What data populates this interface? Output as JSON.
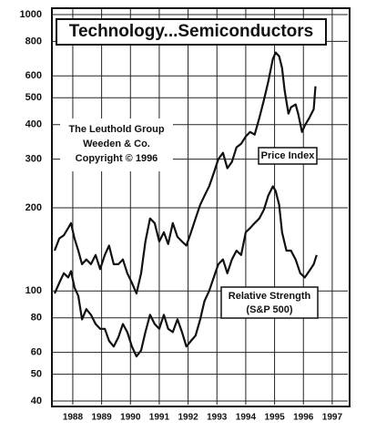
{
  "chart_data": {
    "type": "line",
    "title": "Technology...Semiconductors",
    "annotation": [
      "The Leuthold Group",
      "Weeden & Co.",
      "Copyright © 1996"
    ],
    "series": [
      {
        "name": "Price Index",
        "color": "#111111",
        "x": [
          1987.37,
          1987.53,
          1987.69,
          1987.84,
          1987.94,
          1988.06,
          1988.19,
          1988.32,
          1988.47,
          1988.63,
          1988.79,
          1988.95,
          1989.11,
          1989.26,
          1989.42,
          1989.58,
          1989.74,
          1989.89,
          1990.05,
          1990.21,
          1990.37,
          1990.52,
          1990.68,
          1990.84,
          1991.0,
          1991.16,
          1991.31,
          1991.47,
          1991.63,
          1991.79,
          1991.94,
          1992.1,
          1992.26,
          1992.42,
          1992.57,
          1992.73,
          1992.89,
          1993.05,
          1993.21,
          1993.36,
          1993.52,
          1993.68,
          1993.84,
          1994.0,
          1994.15,
          1994.31,
          1994.47,
          1994.63,
          1994.78,
          1994.94,
          1995.04,
          1995.16,
          1995.26,
          1995.35,
          1995.48,
          1995.57,
          1995.73,
          1995.82,
          1995.95,
          1996.05,
          1996.2,
          1996.36,
          1996.42
        ],
        "values": [
          140,
          155,
          159,
          169,
          176,
          155,
          140,
          125,
          130,
          125,
          135,
          120,
          135,
          146,
          125,
          125,
          130,
          116,
          107,
          98,
          116,
          151,
          183,
          176,
          151,
          163,
          148,
          176,
          157,
          151,
          146,
          163,
          183,
          205,
          221,
          239,
          267,
          300,
          316,
          278,
          293,
          331,
          341,
          362,
          376,
          368,
          422,
          491,
          571,
          691,
          729,
          707,
          641,
          530,
          438,
          462,
          473,
          438,
          376,
          397,
          422,
          455,
          550
        ]
      },
      {
        "name": "Relative Strength",
        "subname": "(S&P 500)",
        "color": "#111111",
        "x": [
          1987.37,
          1987.53,
          1987.69,
          1987.84,
          1987.94,
          1988.06,
          1988.19,
          1988.32,
          1988.47,
          1988.63,
          1988.79,
          1988.95,
          1989.11,
          1989.26,
          1989.42,
          1989.58,
          1989.74,
          1989.89,
          1990.05,
          1990.21,
          1990.37,
          1990.52,
          1990.68,
          1990.84,
          1991.0,
          1991.16,
          1991.31,
          1991.47,
          1991.63,
          1991.79,
          1991.94,
          1992.1,
          1992.26,
          1992.42,
          1992.57,
          1992.73,
          1992.89,
          1993.05,
          1993.21,
          1993.36,
          1993.52,
          1993.68,
          1993.84,
          1994.0,
          1994.15,
          1994.31,
          1994.47,
          1994.63,
          1994.78,
          1994.94,
          1995.04,
          1995.16,
          1995.26,
          1995.41,
          1995.57,
          1995.73,
          1995.89,
          1996.05,
          1996.2,
          1996.36,
          1996.46
        ],
        "values": [
          98,
          107,
          116,
          112,
          118,
          103,
          96,
          79,
          86,
          82,
          76,
          73,
          73,
          66,
          63,
          68,
          76,
          71,
          63,
          58,
          61,
          71,
          82,
          76,
          73,
          82,
          73,
          71,
          79,
          71,
          63,
          66,
          69,
          79,
          92,
          100,
          112,
          125,
          130,
          116,
          130,
          140,
          135,
          163,
          169,
          176,
          183,
          197,
          221,
          239,
          230,
          205,
          163,
          140,
          140,
          130,
          116,
          112,
          118,
          125,
          135
        ]
      }
    ],
    "log_y": true,
    "grid": true,
    "xlim": [
      1987.37,
      1997.54
    ],
    "xticks": [
      1988,
      1989,
      1990,
      1991,
      1992,
      1993,
      1994,
      1995,
      1996,
      1997
    ],
    "ylim": [
      40,
      1000
    ],
    "yticks": [
      40,
      50,
      60,
      80,
      100,
      200,
      300,
      400,
      500,
      600,
      800,
      1000
    ]
  }
}
